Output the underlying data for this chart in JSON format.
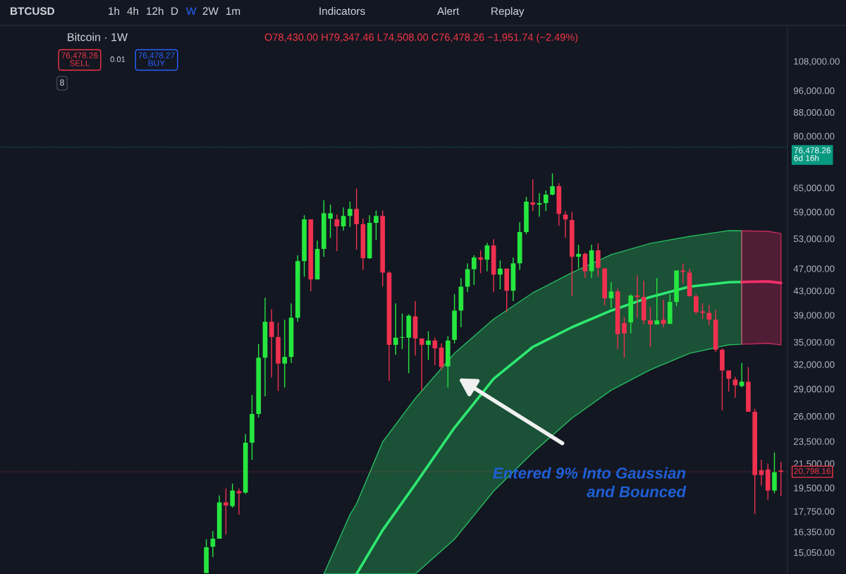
{
  "chart_data": {
    "type": "candlestick",
    "title": "Bitcoin · 1W",
    "subtitle": "O78,430.00 H79,347.46 L74,508.00 C76,478.26 −1,951.74 (−2.49%)",
    "categories": [
      null,
      null,
      null,
      null,
      null,
      null,
      null,
      null,
      null,
      null,
      null,
      null,
      null,
      null,
      null,
      null,
      null,
      null,
      null,
      null,
      null,
      null,
      null,
      null,
      null,
      null,
      null,
      null,
      null,
      null,
      null,
      null,
      null,
      null,
      null,
      null,
      null,
      null,
      null,
      null,
      null,
      null,
      null,
      null,
      null,
      null,
      null,
      null,
      null,
      null,
      null,
      null,
      null,
      null,
      null,
      null,
      null,
      null,
      null,
      null,
      null,
      null,
      null,
      null,
      null,
      null,
      null,
      null,
      null,
      null,
      null,
      null,
      null,
      null,
      null,
      null,
      null,
      null,
      null,
      null,
      null,
      null,
      null,
      null,
      null,
      null,
      null,
      null,
      null
    ],
    "ohlc": [
      [
        13850,
        15860,
        13850,
        15360
      ],
      [
        15400,
        16400,
        14770,
        15900
      ],
      [
        15900,
        18920,
        15900,
        18390
      ],
      [
        18390,
        19450,
        16170,
        18170
      ],
      [
        18120,
        19840,
        18010,
        19290
      ],
      [
        19240,
        19450,
        17510,
        19080
      ],
      [
        19130,
        24190,
        19020,
        23370
      ],
      [
        23370,
        28310,
        21820,
        26230
      ],
      [
        26230,
        34710,
        25860,
        32870
      ],
      [
        32870,
        41820,
        28150,
        37970
      ],
      [
        37970,
        39940,
        30370,
        35720
      ],
      [
        35720,
        37870,
        28770,
        32100
      ],
      [
        32100,
        38280,
        29170,
        32970
      ],
      [
        32970,
        40880,
        32190,
        38590
      ],
      [
        38590,
        49570,
        37970,
        48430
      ],
      [
        48430,
        58210,
        45500,
        57260
      ],
      [
        57260,
        57260,
        42880,
        45000
      ],
      [
        45000,
        52570,
        45000,
        50860
      ],
      [
        50860,
        61820,
        49280,
        58680
      ],
      [
        57420,
        60760,
        53160,
        58680
      ],
      [
        57260,
        58370,
        50430,
        55680
      ],
      [
        55680,
        60060,
        54740,
        58050
      ],
      [
        58050,
        61470,
        55530,
        59710
      ],
      [
        59710,
        64820,
        50710,
        56160
      ],
      [
        56160,
        57420,
        46750,
        49000
      ],
      [
        49000,
        58210,
        48860,
        56470
      ],
      [
        56470,
        59350,
        52710,
        58050
      ],
      [
        58050,
        59350,
        43750,
        46250
      ],
      [
        46250,
        46500,
        29940,
        34610
      ],
      [
        34610,
        40880,
        33260,
        35620
      ],
      [
        35620,
        39240,
        34030,
        35720
      ],
      [
        35620,
        39120,
        30890,
        38900
      ],
      [
        38790,
        41240,
        33160,
        35510
      ],
      [
        35510,
        35510,
        28770,
        34610
      ],
      [
        34610,
        36540,
        32580,
        35210
      ],
      [
        35210,
        35620,
        31910,
        34130
      ],
      [
        34230,
        34810,
        31310,
        31660
      ],
      [
        31740,
        35820,
        29170,
        35210
      ],
      [
        35310,
        42410,
        34810,
        39710
      ],
      [
        39710,
        45250,
        37150,
        43710
      ],
      [
        43710,
        48000,
        42760,
        46880
      ],
      [
        46880,
        49570,
        44000,
        49140
      ],
      [
        49140,
        50570,
        46130,
        48710
      ],
      [
        48710,
        52140,
        46500,
        51570
      ],
      [
        51570,
        52860,
        42760,
        45880
      ],
      [
        45880,
        48570,
        43250,
        47000
      ],
      [
        47000,
        47000,
        39470,
        43000
      ],
      [
        43000,
        49140,
        41240,
        48000
      ],
      [
        48000,
        56630,
        46750,
        54420
      ],
      [
        54420,
        62710,
        53950,
        61470
      ],
      [
        61290,
        67230,
        59180,
        60760
      ],
      [
        60760,
        63590,
        57890,
        61120
      ],
      [
        61120,
        64290,
        59180,
        63240
      ],
      [
        63240,
        68850,
        63060,
        65410
      ],
      [
        65410,
        66220,
        55840,
        58530
      ],
      [
        58370,
        59180,
        53160,
        57260
      ],
      [
        57100,
        59000,
        42060,
        49280
      ],
      [
        49280,
        51710,
        47000,
        49860
      ],
      [
        49860,
        50140,
        45250,
        46500
      ],
      [
        46500,
        51710,
        45250,
        50570
      ],
      [
        50570,
        52000,
        45500,
        47140
      ],
      [
        47000,
        47140,
        40530,
        41710
      ],
      [
        41710,
        44500,
        40060,
        42880
      ],
      [
        42880,
        43380,
        34030,
        36130
      ],
      [
        37770,
        38690,
        32870,
        36230
      ],
      [
        37870,
        42410,
        36230,
        42180
      ],
      [
        42180,
        45750,
        38590,
        41940
      ],
      [
        41940,
        44750,
        37560,
        38180
      ],
      [
        38180,
        40290,
        34320,
        37560
      ],
      [
        37560,
        45250,
        37560,
        38180
      ],
      [
        38280,
        41470,
        37150,
        37670
      ],
      [
        37670,
        42410,
        37560,
        41120
      ],
      [
        41120,
        46630,
        40410,
        46630
      ],
      [
        46630,
        48000,
        44250,
        46380
      ],
      [
        46250,
        47000,
        42060,
        42060
      ],
      [
        42060,
        42410,
        39120,
        39470
      ],
      [
        39590,
        40880,
        38380,
        39350
      ],
      [
        39350,
        40650,
        37460,
        38280
      ],
      [
        38280,
        39820,
        33650,
        33940
      ],
      [
        33940,
        34130,
        26610,
        31230
      ],
      [
        31230,
        31230,
        28690,
        30200
      ],
      [
        30110,
        30460,
        28000,
        29430
      ],
      [
        29340,
        32190,
        29170,
        29850
      ],
      [
        29850,
        31660,
        26460,
        26460
      ],
      [
        26460,
        26770,
        17560,
        20530
      ],
      [
        20930,
        21820,
        19670,
        20530
      ],
      [
        20990,
        21500,
        18600,
        19290
      ],
      [
        19290,
        22470,
        19080,
        20760
      ],
      [
        20900,
        21630,
        18860,
        20798.16
      ]
    ],
    "colors": [
      "#26e63f",
      "#26e63f",
      "#26e63f",
      "#f0304f",
      "#26e63f",
      "#f0304f",
      "#26e63f",
      "#26e63f",
      "#26e63f",
      "#26e63f",
      "#f0304f",
      "#f0304f",
      "#26e63f",
      "#26e63f",
      "#26e63f",
      "#26e63f",
      "#f0304f",
      "#26e63f",
      "#26e63f",
      "#26e63f",
      "#f0304f",
      "#26e63f",
      "#26e63f",
      "#f0304f",
      "#f0304f",
      "#26e63f",
      "#26e63f",
      "#f0304f",
      "#f0304f",
      "#26e63f",
      "#26e63f",
      "#26e63f",
      "#f0304f",
      "#f0304f",
      "#26e63f",
      "#f0304f",
      "#f0304f",
      "#26e63f",
      "#26e63f",
      "#26e63f",
      "#26e63f",
      "#26e63f",
      "#f0304f",
      "#26e63f",
      "#f0304f",
      "#26e63f",
      "#f0304f",
      "#26e63f",
      "#26e63f",
      "#26e63f",
      "#f0304f",
      "#26e63f",
      "#26e63f",
      "#26e63f",
      "#f0304f",
      "#f0304f",
      "#f0304f",
      "#26e63f",
      "#f0304f",
      "#26e63f",
      "#f0304f",
      "#f0304f",
      "#26e63f",
      "#f0304f",
      "#f0304f",
      "#26e63f",
      "#f0304f",
      "#f0304f",
      "#f0304f",
      "#26e63f",
      "#f0304f",
      "#26e63f",
      "#26e63f",
      "#f0304f",
      "#f0304f",
      "#f0304f",
      "#f0304f",
      "#f0304f",
      "#f0304f",
      "#f0304f",
      "#f0304f",
      "#f0304f",
      "#26e63f",
      "#f0304f",
      "#f0304f",
      "#f0304f",
      "#f0304f",
      "#26e63f",
      "#f0304f"
    ],
    "series": [
      {
        "type": "line",
        "color": "#2ee870",
        "values": [
          null,
          null,
          null,
          null,
          null,
          null,
          null,
          null,
          null,
          null,
          null,
          null,
          null,
          null,
          null,
          null,
          null,
          null,
          null,
          null,
          null,
          null,
          null,
          13800,
          null,
          null,
          null,
          16450,
          null,
          null,
          null,
          null,
          19790,
          null,
          null,
          null,
          null,
          null,
          24820,
          null,
          null,
          null,
          null,
          null,
          30200,
          null,
          null,
          null,
          null,
          null,
          34320,
          null,
          null,
          null,
          null,
          null,
          37150,
          null,
          null,
          null,
          null,
          null,
          39710,
          null,
          null,
          null,
          null,
          null,
          41940,
          null,
          null,
          null,
          null,
          null,
          43710,
          null,
          null,
          null,
          null,
          null,
          44500,
          null,
          44550,
          null,
          null,
          null,
          null,
          null,
          null
        ],
        "lower": [
          null,
          null,
          null,
          null,
          null,
          null,
          null,
          null,
          null,
          null,
          null,
          null,
          null,
          null,
          null,
          null,
          null,
          null,
          13800,
          null,
          null,
          null,
          13800,
          13800,
          null,
          null,
          null,
          13800,
          null,
          null,
          null,
          null,
          13800,
          null,
          null,
          null,
          null,
          null,
          15860,
          null,
          null,
          null,
          null,
          null,
          19240,
          null,
          null,
          null,
          null,
          null,
          22470,
          null,
          null,
          null,
          null,
          null,
          25790,
          null,
          null,
          null,
          null,
          null,
          28850,
          null,
          null,
          null,
          null,
          null,
          31310,
          null,
          null,
          null,
          null,
          null,
          33450,
          null,
          null,
          null,
          null,
          null,
          34610,
          null,
          34700,
          null,
          null,
          null,
          null,
          null,
          null
        ],
        "upper": [
          null,
          null,
          null,
          null,
          null,
          null,
          null,
          null,
          null,
          null,
          null,
          null,
          null,
          null,
          null,
          null,
          null,
          null,
          13800,
          null,
          null,
          null,
          17510,
          18280,
          null,
          null,
          null,
          23440,
          null,
          null,
          null,
          null,
          27920,
          null,
          null,
          null,
          null,
          null,
          33450,
          null,
          null,
          null,
          null,
          null,
          38380,
          null,
          null,
          null,
          null,
          null,
          42650,
          null,
          null,
          null,
          null,
          null,
          46250,
          null,
          null,
          null,
          null,
          null,
          49710,
          null,
          null,
          null,
          null,
          null,
          52000,
          null,
          null,
          null,
          null,
          null,
          53470,
          null,
          null,
          null,
          null,
          null,
          54740,
          null,
          54700,
          null,
          null,
          null,
          null,
          null,
          null
        ]
      },
      {
        "type": "line",
        "color": "#f0306a",
        "values": [
          null,
          null,
          null,
          null,
          null,
          null,
          null,
          null,
          null,
          null,
          null,
          null,
          null,
          null,
          null,
          null,
          null,
          null,
          null,
          null,
          null,
          null,
          null,
          null,
          null,
          null,
          null,
          null,
          null,
          null,
          null,
          null,
          null,
          null,
          null,
          null,
          null,
          null,
          null,
          null,
          null,
          null,
          null,
          null,
          null,
          null,
          null,
          null,
          null,
          null,
          null,
          null,
          null,
          null,
          null,
          null,
          null,
          null,
          null,
          null,
          null,
          null,
          null,
          null,
          null,
          null,
          null,
          null,
          null,
          null,
          null,
          null,
          null,
          null,
          null,
          null,
          null,
          null,
          null,
          null,
          null,
          null,
          44550,
          null,
          null,
          null,
          44630,
          null,
          44380
        ],
        "lower": [
          null,
          null,
          null,
          null,
          null,
          null,
          null,
          null,
          null,
          null,
          null,
          null,
          null,
          null,
          null,
          null,
          null,
          null,
          null,
          null,
          null,
          null,
          null,
          null,
          null,
          null,
          null,
          null,
          null,
          null,
          null,
          null,
          null,
          null,
          null,
          null,
          null,
          null,
          null,
          null,
          null,
          null,
          null,
          null,
          null,
          null,
          null,
          null,
          null,
          null,
          null,
          null,
          null,
          null,
          null,
          null,
          null,
          null,
          null,
          null,
          null,
          null,
          null,
          null,
          null,
          null,
          null,
          null,
          null,
          null,
          null,
          null,
          null,
          null,
          null,
          null,
          null,
          null,
          null,
          null,
          null,
          null,
          34700,
          null,
          null,
          null,
          34810,
          null,
          34610
        ],
        "upper": [
          null,
          null,
          null,
          null,
          null,
          null,
          null,
          null,
          null,
          null,
          null,
          null,
          null,
          null,
          null,
          null,
          null,
          null,
          null,
          null,
          null,
          null,
          null,
          null,
          null,
          null,
          null,
          null,
          null,
          null,
          null,
          null,
          null,
          null,
          null,
          null,
          null,
          null,
          null,
          null,
          null,
          null,
          null,
          null,
          null,
          null,
          null,
          null,
          null,
          null,
          null,
          null,
          null,
          null,
          null,
          null,
          null,
          null,
          null,
          null,
          null,
          null,
          null,
          null,
          null,
          null,
          null,
          null,
          null,
          null,
          null,
          null,
          null,
          null,
          null,
          null,
          null,
          null,
          null,
          null,
          null,
          null,
          54700,
          null,
          null,
          null,
          54580,
          null,
          54100
        ]
      }
    ],
    "log": true,
    "ylim": [
      13800,
      124000
    ],
    "yticks": [
      {
        "value": 15050,
        "label": "15,050.00"
      },
      {
        "value": 16350,
        "label": "16,350.00"
      },
      {
        "value": 17750,
        "label": "17,750.00"
      },
      {
        "value": 19500,
        "label": "19,500.00"
      },
      {
        "value": 21500,
        "label": "21,500.00"
      },
      {
        "value": 23500,
        "label": "23,500.00"
      },
      {
        "value": 26000,
        "label": "26,000.00"
      },
      {
        "value": 29000,
        "label": "29,000.00"
      },
      {
        "value": 32000,
        "label": "32,000.00"
      },
      {
        "value": 35000,
        "label": "35,000.00"
      },
      {
        "value": 39000,
        "label": "39,000.00"
      },
      {
        "value": 43000,
        "label": "43,000.00"
      },
      {
        "value": 47000,
        "label": "47,000.00"
      },
      {
        "value": 53000,
        "label": "53,000.00"
      },
      {
        "value": 59000,
        "label": "59,000.00"
      },
      {
        "value": 65000,
        "label": "65,000.00"
      },
      {
        "value": 80000,
        "label": "80,000.00"
      },
      {
        "value": 88000,
        "label": "88,000.00"
      },
      {
        "value": 96000,
        "label": "96,000.00"
      },
      {
        "value": 108000,
        "label": "108,000.00"
      }
    ],
    "tick_labels": "y",
    "ref_lines": [
      {
        "axis": "y",
        "value": 76478.26,
        "label": "76,478.26\n6d 16h",
        "color": "#089981",
        "line_style": "dotted"
      },
      {
        "axis": "y",
        "value": 20798.16,
        "label": "20,798.16",
        "color": "#f23645",
        "line_style": "dashed"
      }
    ],
    "annotations": [
      "BTCUSD",
      "1h",
      "4h",
      "12h",
      "D",
      "W",
      "2W",
      "1m",
      "Indicators",
      "Alert",
      "Replay",
      "76,478.26\nSELL",
      "0.01",
      "76,478.27\nBUY",
      "8",
      "Entered 9% Into Gaussian\nand Bounced"
    ]
  }
}
